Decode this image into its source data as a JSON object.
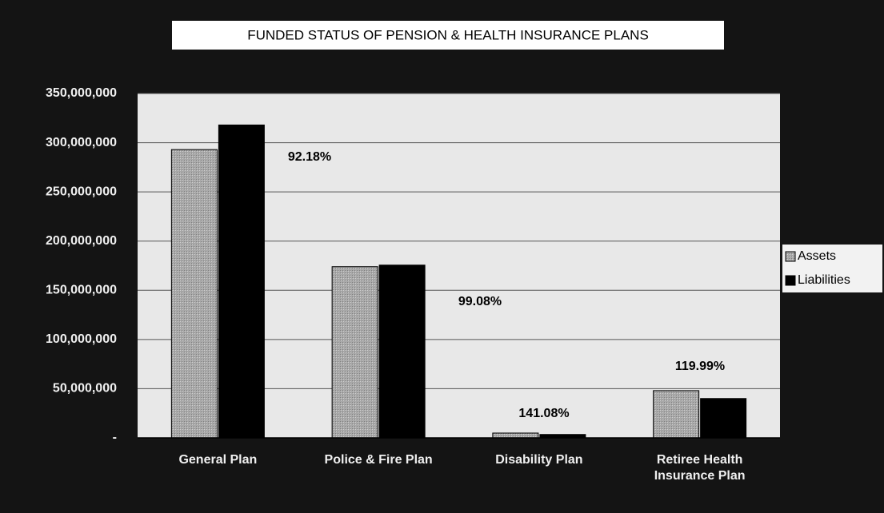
{
  "chart_data": {
    "type": "bar",
    "title": "FUNDED STATUS OF PENSION & HEALTH INSURANCE PLANS",
    "categories": [
      "General Plan",
      "Police & Fire Plan",
      "Disability Plan",
      "Retiree Health Insurance Plan"
    ],
    "series": [
      {
        "name": "Assets",
        "color": "#a8a8a8",
        "values": [
          293000000,
          174000000,
          4900000,
          48000000
        ]
      },
      {
        "name": "Liabilities",
        "color": "#000000",
        "values": [
          318000000,
          175600000,
          3470000,
          40000000
        ]
      }
    ],
    "annotations": [
      "92.18%",
      "99.08%",
      "141.08%",
      "119.99%"
    ],
    "ylim": [
      0,
      350000000
    ],
    "yticks": [
      {
        "value": 0,
        "label": "-"
      },
      {
        "value": 50000000,
        "label": "50,000,000"
      },
      {
        "value": 100000000,
        "label": "100,000,000"
      },
      {
        "value": 150000000,
        "label": "150,000,000"
      },
      {
        "value": 200000000,
        "label": "200,000,000"
      },
      {
        "value": 250000000,
        "label": "250,000,000"
      },
      {
        "value": 300000000,
        "label": "300,000,000"
      },
      {
        "value": 350000000,
        "label": "350,000,000"
      }
    ],
    "grid": true,
    "legend": "right"
  }
}
